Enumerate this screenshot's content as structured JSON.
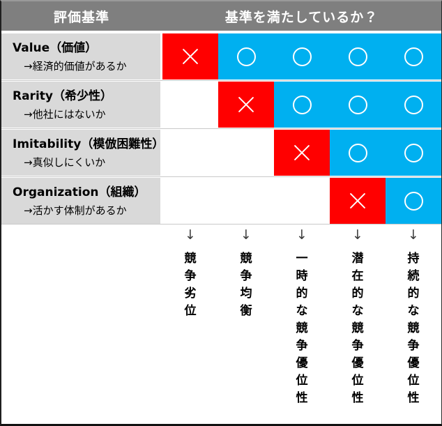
{
  "header": {
    "criteria_label": "評価基準",
    "question_label": "基準を満たしているか？"
  },
  "marks": {
    "no": "×",
    "yes": "○"
  },
  "rows": [
    {
      "title": "Value（価値）",
      "subtitle": "→経済的価値があるか",
      "cells": [
        "×",
        "○",
        "○",
        "○",
        "○"
      ]
    },
    {
      "title": "Rarity（希少性）",
      "subtitle": "→他社にはないか",
      "cells": [
        "",
        "×",
        "○",
        "○",
        "○"
      ]
    },
    {
      "title": "Imitability（模倣困難性）",
      "subtitle": "→真似しにくいか",
      "cells": [
        "",
        "",
        "×",
        "○",
        "○"
      ]
    },
    {
      "title": "Organization（組織）",
      "subtitle": "→活かす体制があるか",
      "cells": [
        "",
        "",
        "",
        "×",
        "○"
      ]
    }
  ],
  "outcomes": [
    {
      "arrow": "↓",
      "label": "競争劣位"
    },
    {
      "arrow": "↓",
      "label": "競争均衡"
    },
    {
      "arrow": "↓",
      "label": "一時的な競争優位性"
    },
    {
      "arrow": "↓",
      "label": "潜在的な競争優位性"
    },
    {
      "arrow": "↓",
      "label": "持続的な競争優位性"
    }
  ],
  "colors": {
    "header_bg": "#7f7f7f",
    "row_label_bg": "#d9d9d9",
    "no_bg": "#ff0000",
    "yes_bg": "#00b0f0",
    "mark_color": "#ffffff"
  }
}
